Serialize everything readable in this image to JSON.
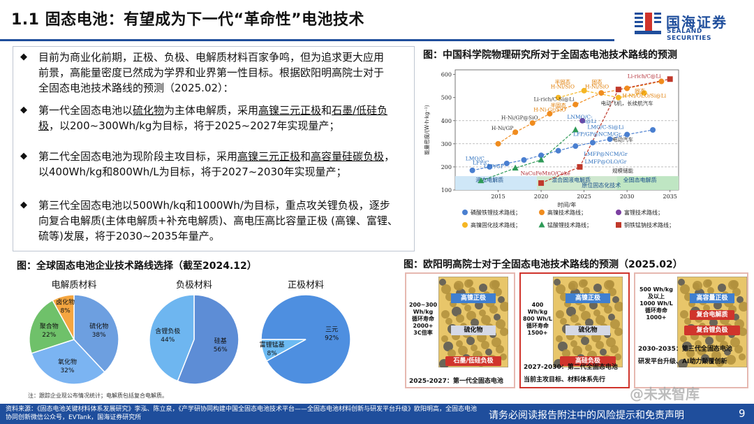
{
  "header": {
    "title": "1.1 固态电池：有望成为下一代“革命性”电池技术",
    "logo_cn": "国海证券",
    "logo_en": "SEALAND SECURITIES"
  },
  "bullets": [
    {
      "mark": "◆",
      "lines": [
        [
          {
            "t": "目前为商业化前期，正极、负极、电解质材料百家争鸣，但为追求更大应用"
          }
        ],
        [
          {
            "t": "前景，高能量密度已然成为学界和业界第一性目标。根据欧阳明高院士对于"
          }
        ],
        [
          {
            "t": "全固态电池技术路线的预测（2025.02）："
          }
        ]
      ]
    },
    {
      "mark": "◆",
      "lines": [
        [
          {
            "t": "第一代全固态电池以"
          },
          {
            "t": "硫化物",
            "u": true
          },
          {
            "t": "为主体电解质，采用"
          },
          {
            "t": "高镍三元正极",
            "u": true
          },
          {
            "t": "和"
          },
          {
            "t": "石墨/低硅负",
            "u": true
          }
        ],
        [
          {
            "t": "极",
            "u": true
          },
          {
            "t": "，以200~300Wh/kg为目标，将于2025~2027年实现量产；"
          }
        ]
      ]
    },
    {
      "mark": "◆",
      "lines": [
        [
          {
            "t": "第二代全固态电池为现阶段主攻目标，采用"
          },
          {
            "t": "高镍三元正极",
            "u": true
          },
          {
            "t": "和"
          },
          {
            "t": "高容量硅碳负极",
            "u": true
          },
          {
            "t": "，"
          }
        ],
        [
          {
            "t": "以400Wh/kg和800Wh/L为目标，将于2027~2030年实现量产；"
          }
        ]
      ]
    },
    {
      "mark": "◆",
      "lines": [
        [
          {
            "t": "第三代全固态电池以500Wh/kq和1000Wh/为目标，重点攻关锂负极，逐步"
          }
        ],
        [
          {
            "t": "向复合电解质(主体电解质+补充电解质)、高电压高比容量正极 (高镍、富锂、"
          }
        ],
        [
          {
            "t": "硫等)发展，将于2030~2035年量产。"
          }
        ]
      ]
    }
  ],
  "fig_line": {
    "title": "图：中国科学院物理研究所对于全固态电池技术路线的预测",
    "ylabel": "能量密度/(W·h·kg⁻¹)",
    "xlabel": "时间/年",
    "x_ticks": [
      "2015",
      "2020",
      "2025",
      "2030",
      "2035"
    ],
    "y_ticks": [
      "100",
      "200",
      "300",
      "400",
      "500",
      "600"
    ],
    "bands": [
      "液态电解质",
      "混合固液电解质",
      "全固态电解质",
      "原位固态化技术"
    ],
    "annotations": [
      {
        "text": "Li-rich/C@Li",
        "x": 2032,
        "y": 585,
        "c": "#b0262f"
      },
      {
        "text": "半固态",
        "x": 2022.5,
        "y": 560,
        "c": "#e07b00"
      },
      {
        "text": "H-Ni/SiO",
        "x": 2022.5,
        "y": 540,
        "c": "#e07b00"
      },
      {
        "text": "固态",
        "x": 2026.5,
        "y": 560,
        "c": "#e07b00"
      },
      {
        "text": "H-Ni/SiO",
        "x": 2026.5,
        "y": 540,
        "c": "#e07b00"
      },
      {
        "text": "固态",
        "x": 2031.5,
        "y": 520,
        "c": "#e07b00"
      },
      {
        "text": "H-Ni/OLO/Si@Li",
        "x": 2032,
        "y": 500,
        "c": "#e07b00"
      },
      {
        "text": "Li-rich/C-Si@Li",
        "x": 2021.5,
        "y": 485,
        "c": "#333333"
      },
      {
        "text": "电动飞机，长续航汽车",
        "x": 2030,
        "y": 468,
        "c": "#333333"
      },
      {
        "text": "半固态",
        "x": 2022,
        "y": 458,
        "c": "#e07b00"
      },
      {
        "text": "H-Ni-Gr/SiO",
        "x": 2021,
        "y": 440,
        "c": "#e07b00"
      },
      {
        "text": "LNMO/C-",
        "x": 2024.5,
        "y": 408,
        "c": "#2a6ebd"
      },
      {
        "text": "Si@Li",
        "x": 2025.5,
        "y": 390,
        "c": "#2a6ebd"
      },
      {
        "text": "H-Ni/GP@SiO",
        "x": 2017.5,
        "y": 405,
        "c": "#333333"
      },
      {
        "text": "LMO/C-Si@Li",
        "x": 2027.5,
        "y": 365,
        "c": "#2a6ebd"
      },
      {
        "text": "H-Ni/GP",
        "x": 2015.5,
        "y": 360,
        "c": "#333333"
      },
      {
        "text": "LFP/GP@NCM/Gr",
        "x": 2026.5,
        "y": 335,
        "c": "#2a6ebd"
      },
      {
        "text": "电动汽车",
        "x": 2029.5,
        "y": 310,
        "c": "#333333"
      },
      {
        "text": "LMFP@NCM/Gr",
        "x": 2027.5,
        "y": 248,
        "c": "#2a6ebd"
      },
      {
        "text": "LMFP@OLO/Gr",
        "x": 2027.5,
        "y": 215,
        "c": "#2a6ebd"
      },
      {
        "text": "LMO/C",
        "x": 2012.3,
        "y": 228,
        "c": "#2a6ebd"
      },
      {
        "text": "LFP/C",
        "x": 2013,
        "y": 210,
        "c": "#2a6ebd"
      },
      {
        "text": "LFP/GP",
        "x": 2014.5,
        "y": 195,
        "c": "#2a6ebd"
      },
      {
        "text": "NaCuFeMnO/Coke",
        "x": 2020.5,
        "y": 165,
        "c": "#b0262f"
      },
      {
        "text": "规模储能",
        "x": 2029.5,
        "y": 175,
        "c": "#333333"
      }
    ],
    "legend": [
      {
        "label": "磷酸铁锂技术路线；",
        "color": "#4a7fd0",
        "shape": "circle"
      },
      {
        "label": "高镍技术路线；",
        "color": "#f08c1e",
        "shape": "circle"
      },
      {
        "label": "富锂技术路线；",
        "color": "#7b3fa0",
        "shape": "circle"
      },
      {
        "label": "高镍固化技术路线；",
        "color": "#f5b623",
        "shape": "circle"
      },
      {
        "label": "锰酸锂技术路线；",
        "color": "#2e9a57",
        "shape": "triangle"
      },
      {
        "label": "铜铁锰钠技术路线；",
        "color": "#c0392b",
        "shape": "square"
      }
    ]
  },
  "chart_data": {
    "type": "scatter",
    "title": "图：中国科学院物理研究所对于全固态电池技术路线的预测",
    "xlabel": "时间/年",
    "ylabel": "能量密度/(W·h·kg⁻¹)",
    "xlim": [
      2010,
      2036
    ],
    "ylim": [
      100,
      620
    ],
    "grid": false,
    "series": [
      {
        "name": "磷酸铁锂技术路线",
        "color": "#4a7fd0",
        "shape": "circle",
        "points": [
          [
            2012,
            185
          ],
          [
            2014,
            200
          ],
          [
            2016,
            215
          ],
          [
            2018,
            230
          ],
          [
            2020,
            250
          ],
          [
            2022,
            270
          ],
          [
            2024,
            290
          ],
          [
            2026,
            305
          ],
          [
            2028,
            320
          ],
          [
            2030,
            340
          ],
          [
            2033,
            360
          ]
        ]
      },
      {
        "name": "高镍技术路线",
        "color": "#f08c1e",
        "shape": "circle",
        "points": [
          [
            2015,
            300
          ],
          [
            2017,
            350
          ],
          [
            2019,
            390
          ],
          [
            2021,
            430
          ],
          [
            2024,
            470
          ],
          [
            2027,
            520
          ],
          [
            2030,
            540
          ],
          [
            2034,
            570
          ]
        ]
      },
      {
        "name": "富锂技术路线",
        "color": "#7b3fa0",
        "shape": "circle",
        "points": [
          [
            2024.8,
            400
          ]
        ]
      },
      {
        "name": "高镍固化技术路线",
        "color": "#f5b623",
        "shape": "circle",
        "points": [
          [
            2022,
            500
          ],
          [
            2025,
            530
          ],
          [
            2029,
            500
          ],
          [
            2032,
            520
          ]
        ]
      },
      {
        "name": "锰酸锂技术路线",
        "color": "#2e9a57",
        "shape": "triangle",
        "points": [
          [
            2013,
            140
          ],
          [
            2017,
            195
          ],
          [
            2020,
            230
          ],
          [
            2024,
            360
          ]
        ]
      },
      {
        "name": "铜铁锰钠技术路线",
        "color": "#c0392b",
        "shape": "square",
        "points": [
          [
            2020,
            130
          ],
          [
            2024.5,
            200
          ],
          [
            2029,
            535
          ],
          [
            2035,
            580
          ]
        ]
      }
    ]
  },
  "fig_pies": {
    "title": "图：全球固态电池企业技术路线选择（截至2024.12）",
    "note": "注：跟踪企业现公布情况统计；电解质包括复合电解质。",
    "pies": [
      {
        "name": "电解质材料",
        "slices": [
          {
            "label": "硫化物",
            "value": 38,
            "pct": "38%",
            "color": "#6d9fe0"
          },
          {
            "label": "氧化物",
            "value": 32,
            "pct": "32%",
            "color": "#7bb4f2"
          },
          {
            "label": "聚合物",
            "value": 22,
            "pct": "22%",
            "color": "#6fc16a"
          },
          {
            "label": "卤化物",
            "value": 8,
            "pct": "8%",
            "color": "#f5a640"
          }
        ]
      },
      {
        "name": "负极材料",
        "slices": [
          {
            "label": "硅基",
            "value": 56,
            "pct": "56%",
            "color": "#5d8dd6"
          },
          {
            "label": "含锂负极",
            "value": 44,
            "pct": "44%",
            "color": "#6eb6f0"
          }
        ]
      },
      {
        "name": "正极材料",
        "slices": [
          {
            "label": "三元",
            "value": 92,
            "pct": "92%",
            "color": "#4e8fe0"
          },
          {
            "label": "富锂锰基",
            "value": 8,
            "pct": "8%",
            "color": "#6cbaf2"
          }
        ]
      }
    ]
  },
  "fig_panels": {
    "title": "图：欧阳明高院士对于全固态电池技术路线的预测（2025.02）",
    "panels": [
      {
        "side": [
          "200~300",
          "Wh/kg",
          "循环寿命",
          "2000+",
          "3C倍率"
        ],
        "top": "高镍正极",
        "mid": "硫化物",
        "bottom": "石墨/低硅负极",
        "cap": "2025-2027：第一代全固态电池",
        "sub": ""
      },
      {
        "side": [
          "400 Wh/kg",
          "800 Wh/L",
          "循环寿命",
          "1500+"
        ],
        "top": "高镍正极",
        "mid": "硫化物",
        "bottom": "高硅负极",
        "cap": "2027-2030：第二代全固态电池",
        "sub": "当前主攻目标、材料体系先行"
      },
      {
        "side": [
          "500 Wh/kg",
          "及以上",
          "1000 Wh/L",
          "循环寿命",
          "1000+"
        ],
        "top": "高容量正极",
        "mid": "复合电解质",
        "bottom": "复合锂负极",
        "cap": "2030-2035：第三代全固态电池",
        "sub": "研发平台升级、AI助力颠覆创新"
      }
    ]
  },
  "footer": {
    "source": "资料来源：《固态电池关键材料体系发展研究》李泓、陈立泉，《产学研协同构建中国全固态电池技术平台——全固态电池材料创新与研发平台升级》欧阳明高，全固态电池协同创新微信公众号，EVTank，国海证券研究所",
    "disclaimer": "请务必阅读报告附注中的风险提示和免责声明",
    "page": "9",
    "watermark": "@未来智库"
  },
  "colors": {
    "brand": "#1f4e9c",
    "accent_red": "#d0342c"
  }
}
